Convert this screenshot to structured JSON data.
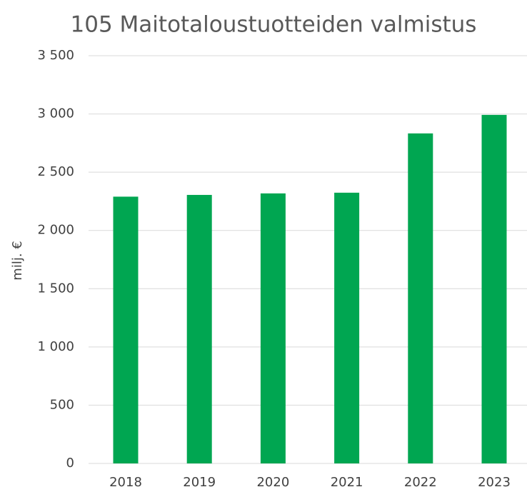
{
  "chart_data": {
    "type": "bar",
    "title": "105 Maitotaloustuotteiden valmistus",
    "y_label": "milj. €",
    "categories": [
      "2018",
      "2019",
      "2020",
      "2021",
      "2022",
      "2023"
    ],
    "values": [
      2290,
      2305,
      2318,
      2324,
      2833,
      2992
    ],
    "color": "#00a651",
    "ylim": [
      0,
      3500
    ],
    "yticks": [
      0,
      500,
      {
        "value": 1000,
        "label": "1 000"
      },
      {
        "value": 1500,
        "label": "1 500"
      },
      {
        "value": 2000,
        "label": "2 000"
      },
      {
        "value": 2500,
        "label": "2 500"
      },
      {
        "value": 3000,
        "label": "3 000"
      },
      {
        "value": 3500,
        "label": "3 500"
      }
    ],
    "grid": true
  }
}
